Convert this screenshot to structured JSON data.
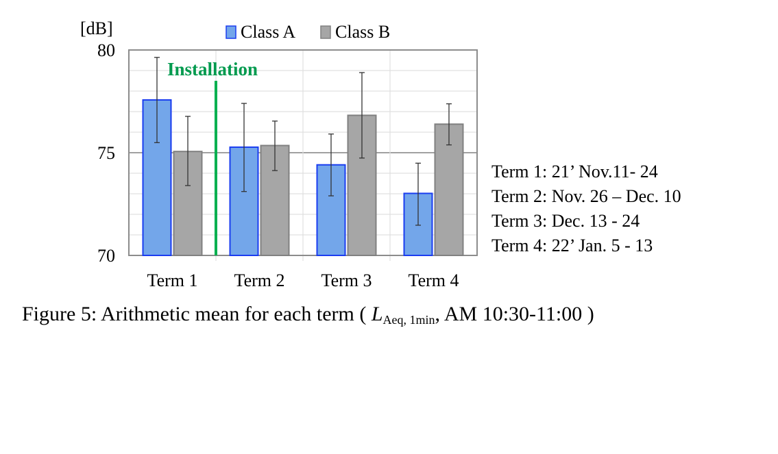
{
  "chart_data": {
    "type": "bar",
    "title": "",
    "ylabel": "[dB]",
    "xlabel": "",
    "ylim": [
      70,
      80
    ],
    "yticks": [
      "70",
      "75",
      "80"
    ],
    "grid": true,
    "legend_position": "top",
    "categories": [
      "Term 1",
      "Term 2",
      "Term 3",
      "Term 4"
    ],
    "series": [
      {
        "name": "Class A",
        "color": "#73a6ea",
        "edge": "#1a3cf0",
        "values": [
          77.57,
          75.27,
          74.41,
          73.02
        ],
        "err_high": [
          79.64,
          77.4,
          75.91,
          74.49
        ],
        "err_low": [
          75.49,
          73.11,
          72.9,
          71.47
        ]
      },
      {
        "name": "Class B",
        "color": "#a6a6a6",
        "edge": "#808080",
        "values": [
          75.06,
          75.35,
          76.82,
          76.39
        ],
        "err_high": [
          76.77,
          76.54,
          78.9,
          77.38
        ],
        "err_low": [
          73.4,
          74.13,
          74.74,
          75.38
        ]
      }
    ],
    "annotation": {
      "text": "Installation",
      "color": "#009a4e",
      "between_categories": [
        1,
        2
      ]
    }
  },
  "term_notes": [
    "Term 1: 21’ Nov.11- 24",
    "Term 2: Nov. 26 – Dec. 10",
    "Term 3: Dec. 13 - 24",
    "Term 4: 22’ Jan. 5 - 13"
  ],
  "caption": {
    "prefix": "Figure 5: Arithmetic mean for each term ( ",
    "symbol": "L",
    "subscript": "Aeq, 1min",
    "suffix": ", AM 10:30-11:00 )"
  }
}
